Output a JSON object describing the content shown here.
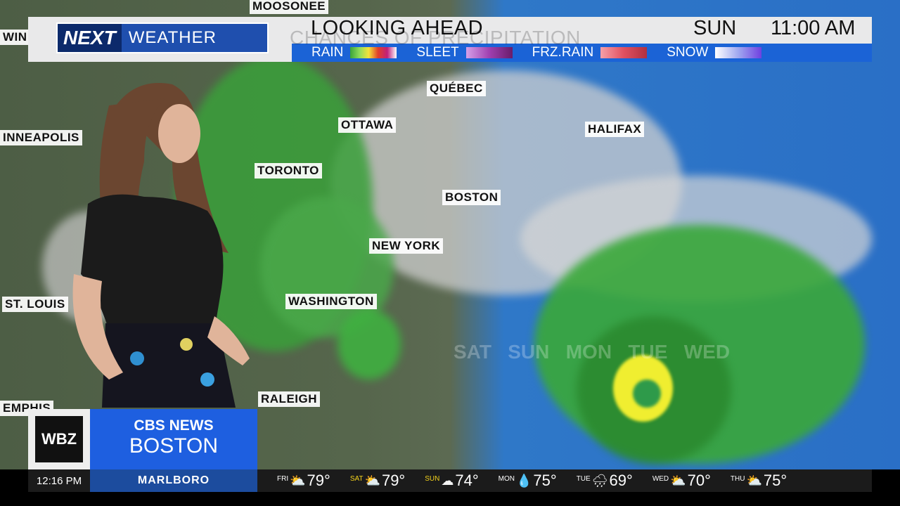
{
  "header": {
    "logo": {
      "next": "NEXT",
      "weather": "WEATHER"
    },
    "title": "LOOKING AHEAD",
    "ghost_title": "CHANCES OF PRECIPITATION",
    "day": "SUN",
    "time": "11:00 AM"
  },
  "legend": [
    {
      "label": "RAIN",
      "gradient": "linear-gradient(90deg,#3aa43a,#8fdc5a,#f5e23a,#e0402a,#c0207a,#fff)"
    },
    {
      "label": "SLEET",
      "gradient": "linear-gradient(90deg,#d6a0e8,#a040b0,#6a1c6a)"
    },
    {
      "label": "FRZ.RAIN",
      "gradient": "linear-gradient(90deg,#f6a0a8,#e05060,#b03040)"
    },
    {
      "label": "SNOW",
      "gradient": "linear-gradient(90deg,#fff,#a0a8f0,#7040e0)"
    }
  ],
  "map": {
    "cities": [
      "MOOSONEE",
      "WIN",
      "INNEAPOLIS",
      "QUÉBEC",
      "OTTAWA",
      "TORONTO",
      "HALIFAX",
      "BOSTON",
      "NEW YORK",
      "WASHINGTON",
      "ST. LOUIS",
      "RALEIGH",
      "EMPHIS"
    ],
    "ghost_days": "SAT   SUN   MON   TUE   WED"
  },
  "branding": {
    "station": "WBZ",
    "network": "CBS NEWS",
    "city": "BOSTON"
  },
  "ticker": {
    "clock": "12:16 PM",
    "location": "MARLBORO",
    "forecast": [
      {
        "day": "FRI",
        "icon": "partly-sunny-icon",
        "temp": "79°",
        "weekend": false
      },
      {
        "day": "SAT",
        "icon": "partly-sunny-icon",
        "temp": "79°",
        "weekend": true
      },
      {
        "day": "SUN",
        "icon": "cloudy-icon",
        "temp": "74°",
        "weekend": true
      },
      {
        "day": "MON",
        "icon": "rain-drops-icon",
        "temp": "75°",
        "weekend": false
      },
      {
        "day": "TUE",
        "icon": "rain-cloud-icon",
        "temp": "69°",
        "weekend": false
      },
      {
        "day": "WED",
        "icon": "partly-sunny-icon",
        "temp": "70°",
        "weekend": false
      },
      {
        "day": "THU",
        "icon": "partly-sunny-icon",
        "temp": "75°",
        "weekend": false
      }
    ]
  },
  "colors": {
    "header_blue": "#1b63d6",
    "cbs_blue": "#1e5fe0",
    "ocean": "#2a6fc6",
    "weekend": "#f3d21c"
  }
}
